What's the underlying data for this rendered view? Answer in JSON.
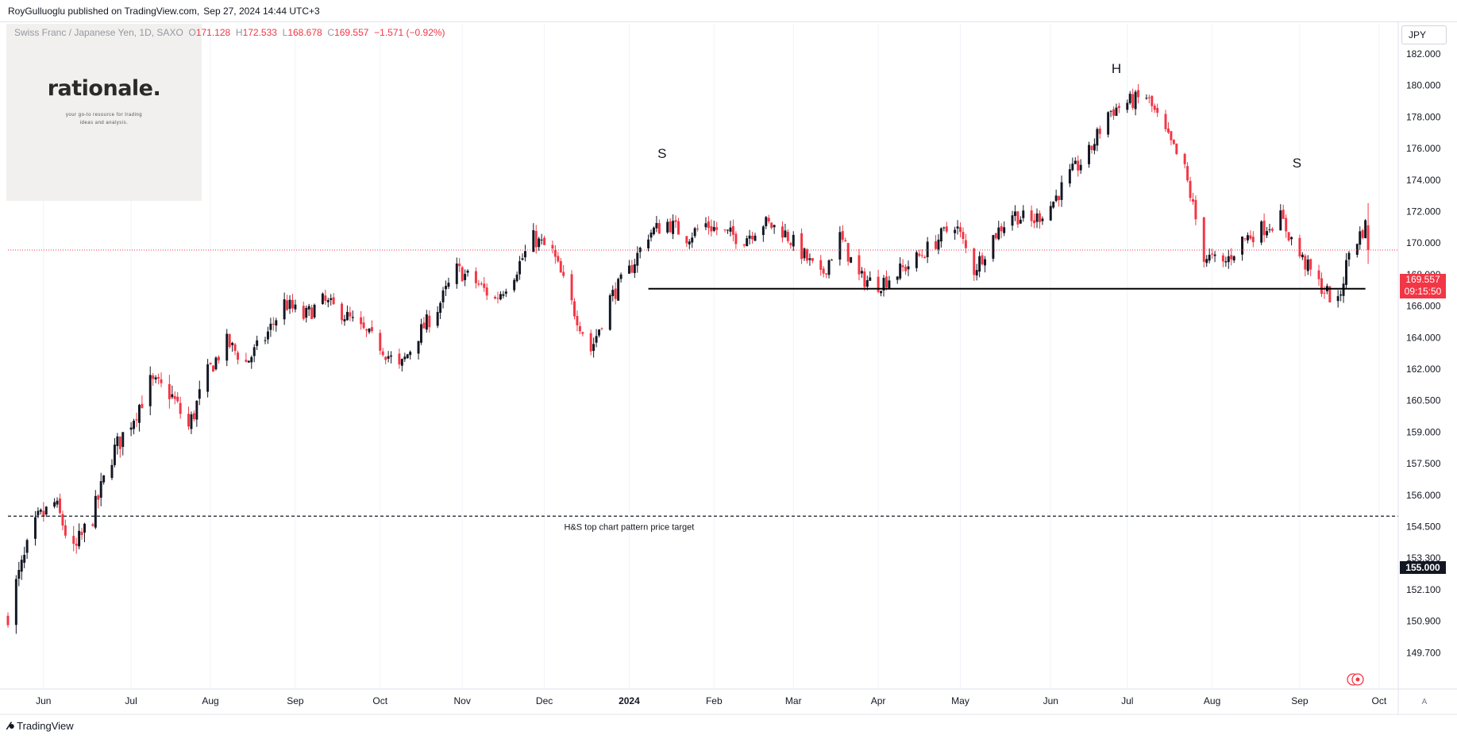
{
  "header": {
    "author": "RoyGulluoglu published on TradingView.com,",
    "datetime": "Sep 27, 2024 14:44 UTC+3"
  },
  "legend": {
    "symbol": "Swiss Franc / Japanese Yen, 1D, SAXO",
    "o_label": "O",
    "o_value": "171.128",
    "h_label": "H",
    "h_value": "172.533",
    "l_label": "L",
    "l_value": "168.678",
    "c_label": "C",
    "c_value": "169.557",
    "change": "−1.571 (−0.92%)"
  },
  "logo": {
    "title": "rationale.",
    "subtitle_line1": "your go-to resource for trading",
    "subtitle_line2": "ideas and analysis."
  },
  "axis": {
    "unit": "JPY",
    "auto_label": "A"
  },
  "price_tag": {
    "price": "169.557",
    "countdown": "09:15:50"
  },
  "target_tag": {
    "price": "155.000"
  },
  "branding": {
    "name": "TradingView"
  },
  "colors": {
    "up": "#131722",
    "down": "#f23645",
    "grid": "#f0f3fa",
    "last_price_line": "#f23645"
  },
  "chart_data": {
    "type": "candlestick",
    "interval": "1D",
    "y_ticks": [
      "182.000",
      "180.000",
      "178.000",
      "176.000",
      "174.000",
      "172.000",
      "170.000",
      "168.000",
      "166.000",
      "164.000",
      "162.000",
      "160.500",
      "159.000",
      "157.500",
      "156.000",
      "154.500",
      "153.300",
      "152.100",
      "150.900",
      "149.700"
    ],
    "y_tick_values": [
      182.0,
      180.0,
      178.0,
      176.0,
      174.0,
      172.0,
      170.0,
      168.0,
      166.0,
      164.0,
      162.0,
      160.5,
      159.0,
      157.5,
      156.0,
      154.5,
      153.3,
      152.1,
      150.9,
      149.7
    ],
    "x_ticks": [
      "Jun",
      "Jul",
      "Aug",
      "Sep",
      "Oct",
      "Nov",
      "Dec",
      "2024",
      "Feb",
      "Mar",
      "Apr",
      "May",
      "Jun",
      "Jul",
      "Aug",
      "Sep",
      "Oct"
    ],
    "x_tick_bold": [
      false,
      false,
      false,
      false,
      false,
      false,
      false,
      true,
      false,
      false,
      false,
      false,
      false,
      false,
      false,
      false,
      false
    ],
    "x_range": [
      "2023-05-19",
      "2024-10-08"
    ],
    "annotations": [
      {
        "label": "S",
        "date": "2024-01-13",
        "price": 175.4
      },
      {
        "label": "H",
        "date": "2024-06-27",
        "price": 180.8
      },
      {
        "label": "S",
        "date": "2024-09-01",
        "price": 174.8
      },
      {
        "label": "H&S top chart pattern price target",
        "date": "2024-01-01",
        "price": 154.5
      }
    ],
    "neckline": {
      "price": 167.1,
      "from": "2024-01-08",
      "to": "2024-09-26"
    },
    "target_line": {
      "price": 155.0
    },
    "last_price": 169.557,
    "price_path": [
      {
        "date": "2023-05-19",
        "close": 151.3
      },
      {
        "date": "2023-05-30",
        "close": 154.8
      },
      {
        "date": "2023-06-05",
        "close": 155.6
      },
      {
        "date": "2023-06-12",
        "close": 153.4
      },
      {
        "date": "2023-06-19",
        "close": 155.0
      },
      {
        "date": "2023-06-26",
        "close": 157.9
      },
      {
        "date": "2023-07-04",
        "close": 159.8
      },
      {
        "date": "2023-07-10",
        "close": 161.3
      },
      {
        "date": "2023-07-17",
        "close": 160.9
      },
      {
        "date": "2023-07-24",
        "close": 159.2
      },
      {
        "date": "2023-07-31",
        "close": 161.8
      },
      {
        "date": "2023-08-07",
        "close": 163.7
      },
      {
        "date": "2023-08-14",
        "close": 162.4
      },
      {
        "date": "2023-08-21",
        "close": 164.0
      },
      {
        "date": "2023-08-28",
        "close": 166.2
      },
      {
        "date": "2023-09-04",
        "close": 165.3
      },
      {
        "date": "2023-09-11",
        "close": 166.3
      },
      {
        "date": "2023-09-18",
        "close": 165.6
      },
      {
        "date": "2023-09-25",
        "close": 164.5
      },
      {
        "date": "2023-10-02",
        "close": 163.5
      },
      {
        "date": "2023-10-09",
        "close": 162.0
      },
      {
        "date": "2023-10-16",
        "close": 164.2
      },
      {
        "date": "2023-10-23",
        "close": 165.9
      },
      {
        "date": "2023-10-30",
        "close": 168.3
      },
      {
        "date": "2023-11-06",
        "close": 167.5
      },
      {
        "date": "2023-11-13",
        "close": 166.4
      },
      {
        "date": "2023-11-20",
        "close": 168.1
      },
      {
        "date": "2023-11-27",
        "close": 170.3
      },
      {
        "date": "2023-12-04",
        "close": 169.4
      },
      {
        "date": "2023-12-11",
        "close": 166.1
      },
      {
        "date": "2023-12-18",
        "close": 163.2
      },
      {
        "date": "2023-12-25",
        "close": 166.5
      },
      {
        "date": "2024-01-01",
        "close": 168.2
      },
      {
        "date": "2024-01-08",
        "close": 170.6
      },
      {
        "date": "2024-01-15",
        "close": 171.3
      },
      {
        "date": "2024-01-22",
        "close": 170.4
      },
      {
        "date": "2024-01-29",
        "close": 171.2
      },
      {
        "date": "2024-02-05",
        "close": 170.6
      },
      {
        "date": "2024-02-12",
        "close": 170.3
      },
      {
        "date": "2024-02-19",
        "close": 171.3
      },
      {
        "date": "2024-02-26",
        "close": 170.8
      },
      {
        "date": "2024-03-04",
        "close": 169.4
      },
      {
        "date": "2024-03-11",
        "close": 167.8
      },
      {
        "date": "2024-03-18",
        "close": 170.4
      },
      {
        "date": "2024-03-25",
        "close": 167.8
      },
      {
        "date": "2024-04-01",
        "close": 167.4
      },
      {
        "date": "2024-04-08",
        "close": 168.1
      },
      {
        "date": "2024-04-15",
        "close": 169.0
      },
      {
        "date": "2024-04-22",
        "close": 170.1
      },
      {
        "date": "2024-04-29",
        "close": 171.3
      },
      {
        "date": "2024-05-06",
        "close": 168.3
      },
      {
        "date": "2024-05-13",
        "close": 170.4
      },
      {
        "date": "2024-05-20",
        "close": 171.9
      },
      {
        "date": "2024-05-27",
        "close": 171.3
      },
      {
        "date": "2024-06-03",
        "close": 172.4
      },
      {
        "date": "2024-06-10",
        "close": 174.3
      },
      {
        "date": "2024-06-17",
        "close": 175.7
      },
      {
        "date": "2024-06-24",
        "close": 178.3
      },
      {
        "date": "2024-07-01",
        "close": 178.9
      },
      {
        "date": "2024-07-08",
        "close": 179.3
      },
      {
        "date": "2024-07-15",
        "close": 176.9
      },
      {
        "date": "2024-07-22",
        "close": 174.6
      },
      {
        "date": "2024-07-29",
        "close": 169.2
      },
      {
        "date": "2024-08-05",
        "close": 168.6
      },
      {
        "date": "2024-08-12",
        "close": 170.2
      },
      {
        "date": "2024-08-19",
        "close": 170.9
      },
      {
        "date": "2024-08-26",
        "close": 171.6
      },
      {
        "date": "2024-09-02",
        "close": 169.2
      },
      {
        "date": "2024-09-09",
        "close": 167.4
      },
      {
        "date": "2024-09-16",
        "close": 166.1
      },
      {
        "date": "2024-09-20",
        "close": 169.4
      },
      {
        "date": "2024-09-26",
        "close": 171.1
      },
      {
        "date": "2024-09-27",
        "close": 169.557
      }
    ]
  }
}
